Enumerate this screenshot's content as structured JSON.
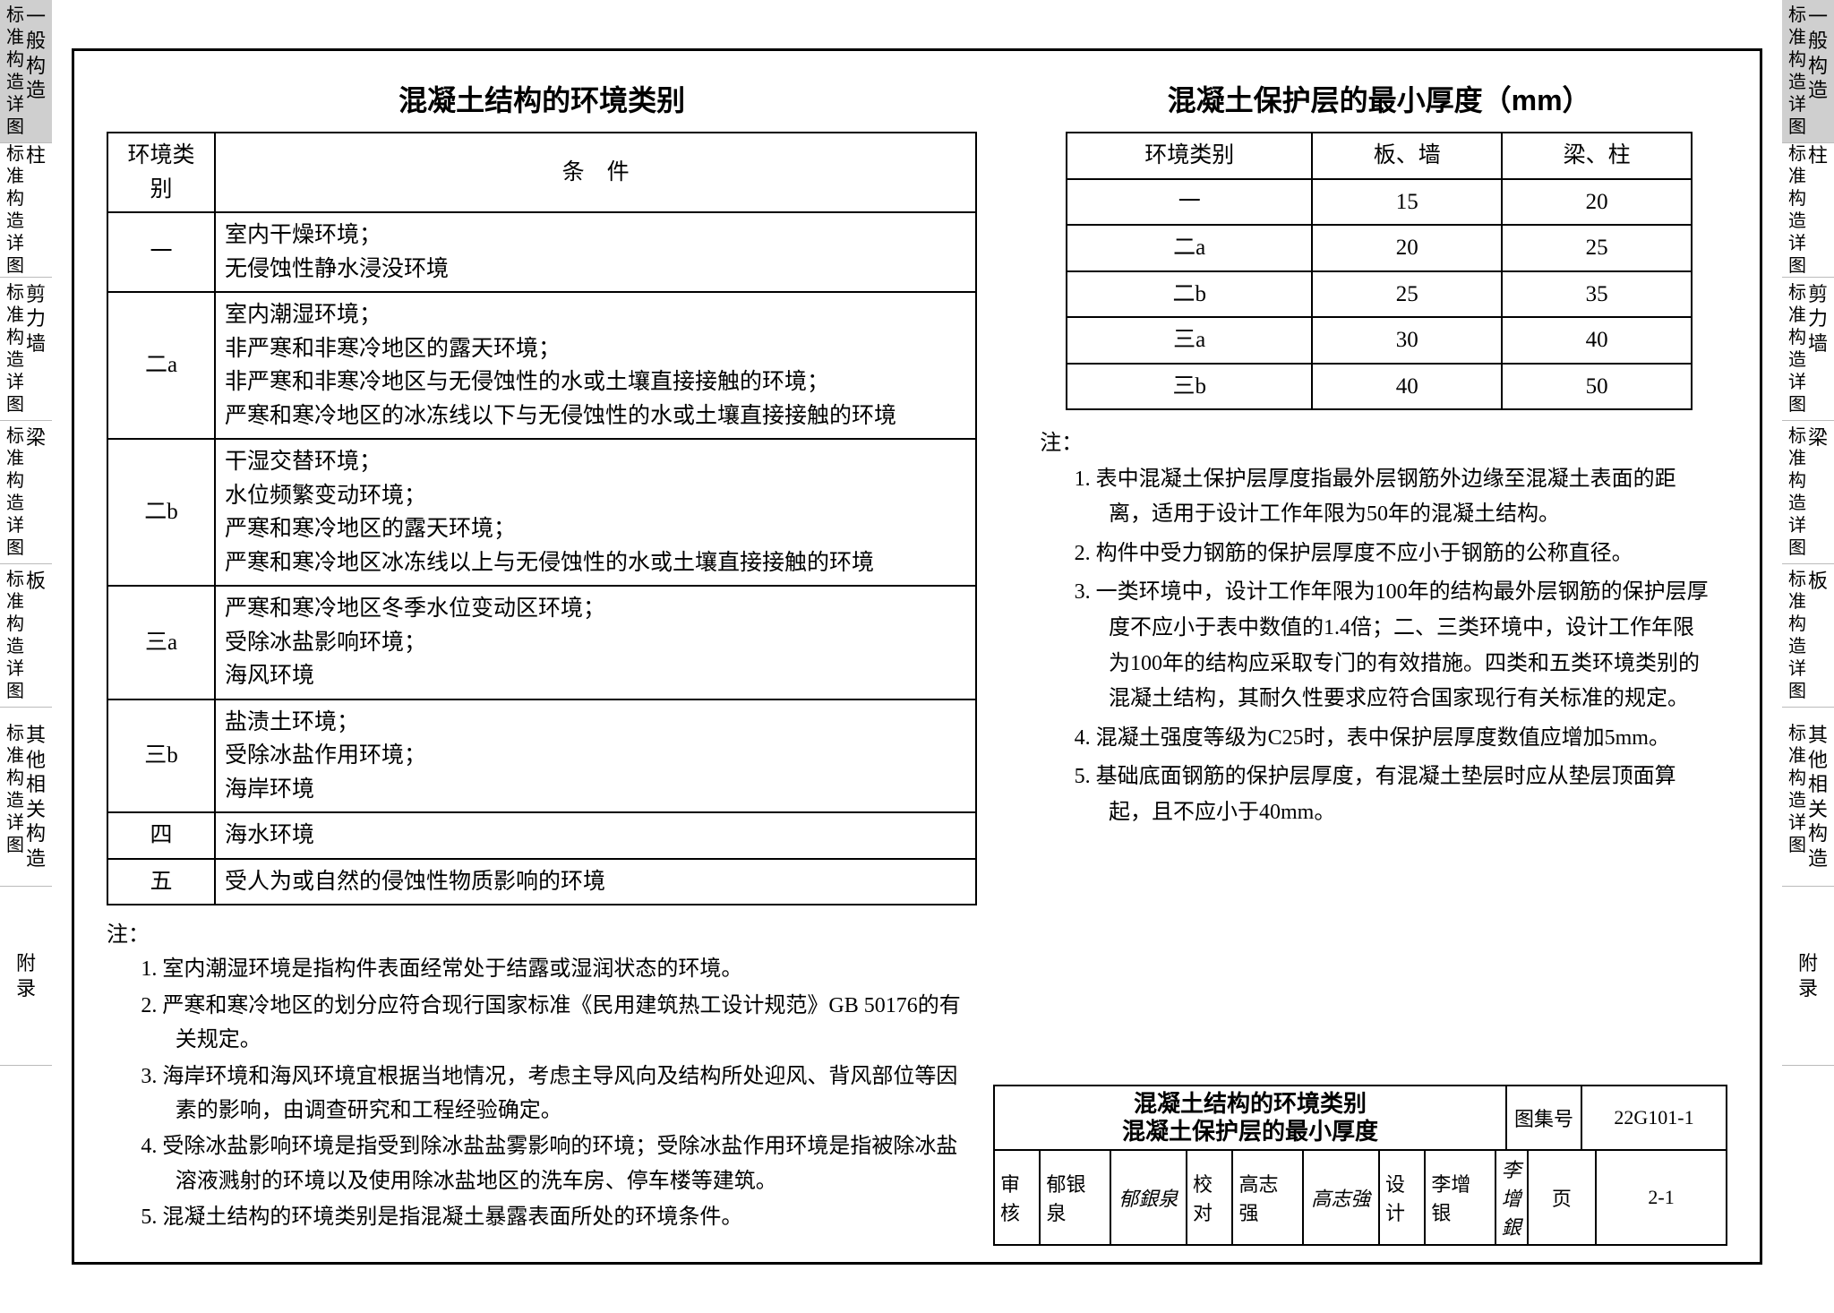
{
  "side_tabs": [
    {
      "shaded": true,
      "cols": [
        "标准构造详图",
        "一般构造"
      ]
    },
    {
      "shaded": false,
      "cols": [
        "标准构造详图",
        "柱"
      ]
    },
    {
      "shaded": false,
      "cols": [
        "标准构造详图",
        "剪力墙"
      ]
    },
    {
      "shaded": false,
      "cols": [
        "标准构造详图",
        "梁"
      ]
    },
    {
      "shaded": false,
      "cols": [
        "标准构造详图",
        "板"
      ]
    },
    {
      "shaded": false,
      "cols": [
        "标准构造详图",
        "其他相关构造"
      ]
    },
    {
      "shaded": false,
      "cols": [
        "附录"
      ]
    }
  ],
  "tab_heights": [
    160,
    150,
    160,
    160,
    160,
    200,
    200
  ],
  "left": {
    "title": "混凝土结构的环境类别",
    "headers": [
      "环境类别",
      "条　件"
    ],
    "rows": [
      {
        "cat": "一",
        "cond": "室内干燥环境；\n无侵蚀性静水浸没环境"
      },
      {
        "cat": "二a",
        "cond": "室内潮湿环境；\n非严寒和非寒冷地区的露天环境；\n非严寒和非寒冷地区与无侵蚀性的水或土壤直接接触的环境；\n严寒和寒冷地区的冰冻线以下与无侵蚀性的水或土壤直接接触的环境"
      },
      {
        "cat": "二b",
        "cond": "干湿交替环境；\n水位频繁变动环境；\n严寒和寒冷地区的露天环境；\n严寒和寒冷地区冰冻线以上与无侵蚀性的水或土壤直接接触的环境"
      },
      {
        "cat": "三a",
        "cond": "严寒和寒冷地区冬季水位变动区环境；\n受除冰盐影响环境；\n海风环境"
      },
      {
        "cat": "三b",
        "cond": "盐渍土环境；\n受除冰盐作用环境；\n海岸环境"
      },
      {
        "cat": "四",
        "cond": "海水环境"
      },
      {
        "cat": "五",
        "cond": "受人为或自然的侵蚀性物质影响的环境"
      }
    ],
    "notes_label": "注：",
    "notes": [
      "1. 室内潮湿环境是指构件表面经常处于结露或湿润状态的环境。",
      "2. 严寒和寒冷地区的划分应符合现行国家标准《民用建筑热工设计规范》GB 50176的有关规定。",
      "3. 海岸环境和海风环境宜根据当地情况，考虑主导风向及结构所处迎风、背风部位等因素的影响，由调查研究和工程经验确定。",
      "4. 受除冰盐影响环境是指受到除冰盐盐雾影响的环境；受除冰盐作用环境是指被除冰盐溶液溅射的环境以及使用除冰盐地区的洗车房、停车楼等建筑。",
      "5. 混凝土结构的环境类别是指混凝土暴露表面所处的环境条件。"
    ]
  },
  "right": {
    "title": "混凝土保护层的最小厚度（mm）",
    "headers": [
      "环境类别",
      "板、墙",
      "梁、柱"
    ],
    "rows": [
      [
        "一",
        "15",
        "20"
      ],
      [
        "二a",
        "20",
        "25"
      ],
      [
        "二b",
        "25",
        "35"
      ],
      [
        "三a",
        "30",
        "40"
      ],
      [
        "三b",
        "40",
        "50"
      ]
    ],
    "notes_label": "注：",
    "notes": [
      "1. 表中混凝土保护层厚度指最外层钢筋外边缘至混凝土表面的距离，适用于设计工作年限为50年的混凝土结构。",
      "2. 构件中受力钢筋的保护层厚度不应小于钢筋的公称直径。",
      "3. 一类环境中，设计工作年限为100年的结构最外层钢筋的保护层厚度不应小于表中数值的1.4倍；二、三类环境中，设计工作年限为100年的结构应采取专门的有效措施。四类和五类环境类别的混凝土结构，其耐久性要求应符合国家现行有关标准的规定。",
      "4. 混凝土强度等级为C25时，表中保护层厚度数值应增加5mm。",
      "5. 基础底面钢筋的保护层厚度，有混凝土垫层时应从垫层顶面算起，且不应小于40mm。"
    ]
  },
  "titleblock": {
    "title_line1": "混凝土结构的环境类别",
    "title_line2": "混凝土保护层的最小厚度",
    "atlas_label": "图集号",
    "atlas_value": "22G101-1",
    "page_label": "页",
    "page_value": "2-1",
    "review_label": "审核",
    "reviewer": "郁银泉",
    "reviewer_sig": "郁銀泉",
    "check_label": "校对",
    "checker": "高志强",
    "checker_sig": "高志強",
    "design_label": "设计",
    "designer": "李增银",
    "designer_sig": "李增銀"
  },
  "style": {
    "bg": "#ffffff",
    "tab_shade": "#cfcfcf",
    "border": "#000000",
    "font_body_pt": 25,
    "font_title_pt": 32
  }
}
